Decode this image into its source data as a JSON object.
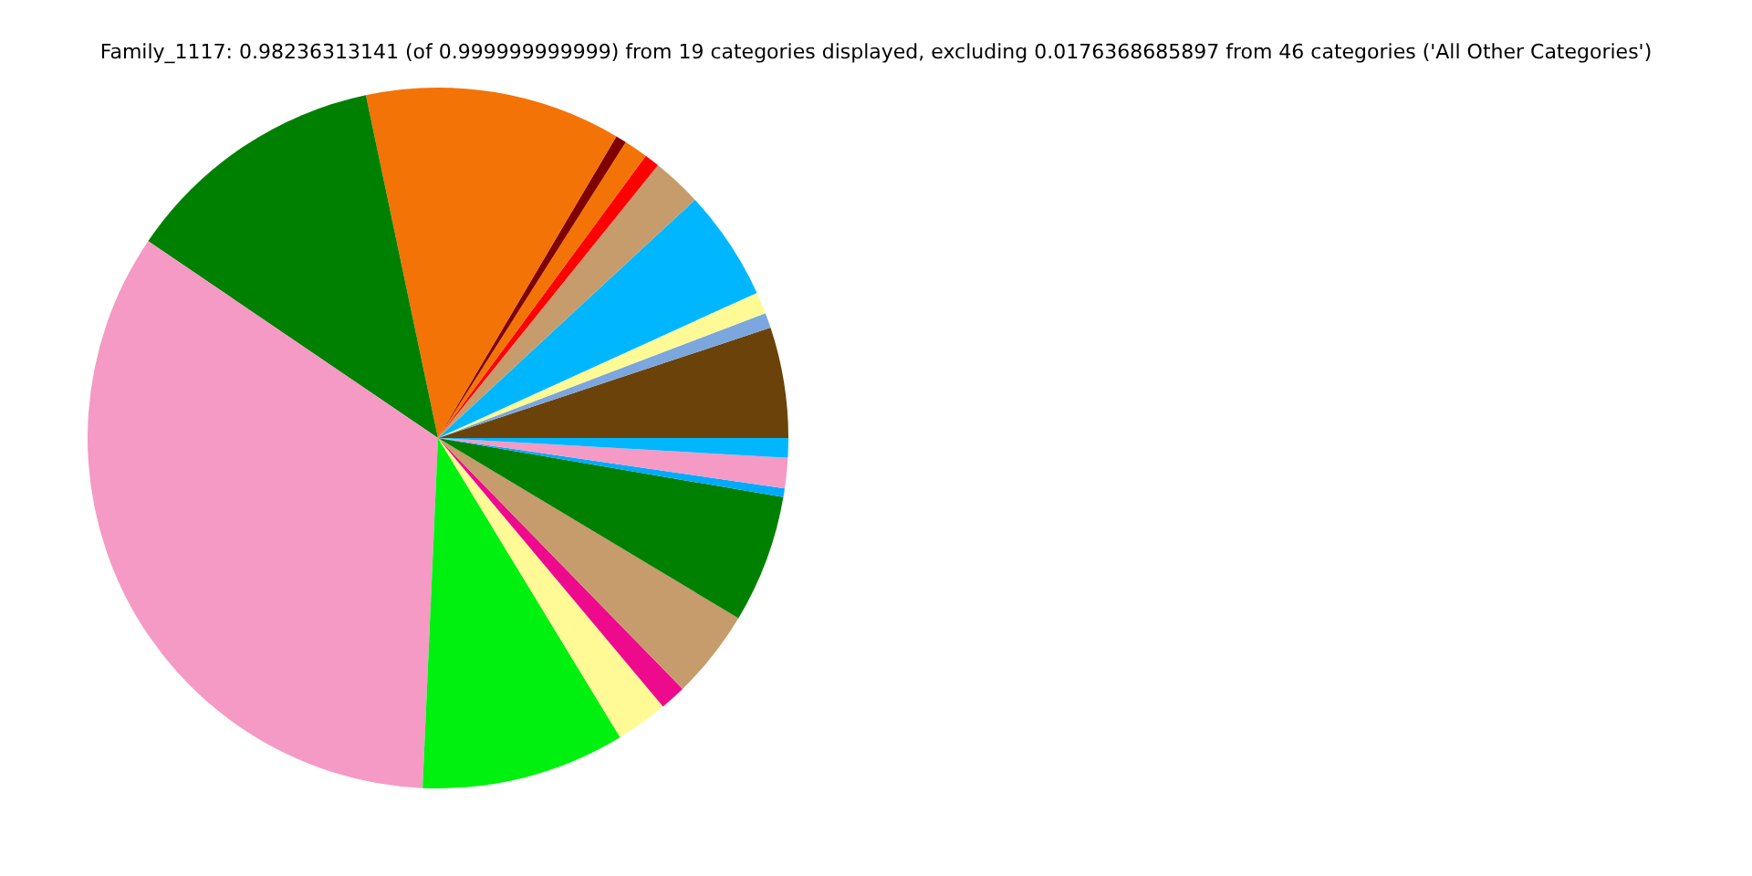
{
  "chart_data": {
    "type": "pie",
    "title": "Family_1117: 0.98236313141 (of 0.999999999999) from 19 categories displayed, excluding 0.0176368685897 from 46 categories ('All Other Categories')",
    "categories": [
      null,
      null,
      null,
      null,
      null,
      null,
      null,
      null,
      null,
      null,
      null,
      null,
      null,
      null,
      null,
      null,
      null,
      null,
      null
    ],
    "values": [
      5.1,
      0.7,
      1.0,
      5.1,
      2.3,
      0.7,
      1.1,
      0.5,
      11.8,
      12.2,
      33.8,
      9.4,
      2.4,
      1.2,
      4.1,
      5.9,
      0.4,
      1.4,
      0.9
    ],
    "colors": [
      "#6b4209",
      "#7ba6de",
      "#fffa96",
      "#00b7ff",
      "#c69c6c",
      "#ff0000",
      "#f37306",
      "#800000",
      "#f37306",
      "#008000",
      "#f49ac4",
      "#00f010",
      "#fffa96",
      "#ee0a8c",
      "#c69c6c",
      "#008000",
      "#00aaff",
      "#f49ac4",
      "#00b7ff"
    ]
  }
}
